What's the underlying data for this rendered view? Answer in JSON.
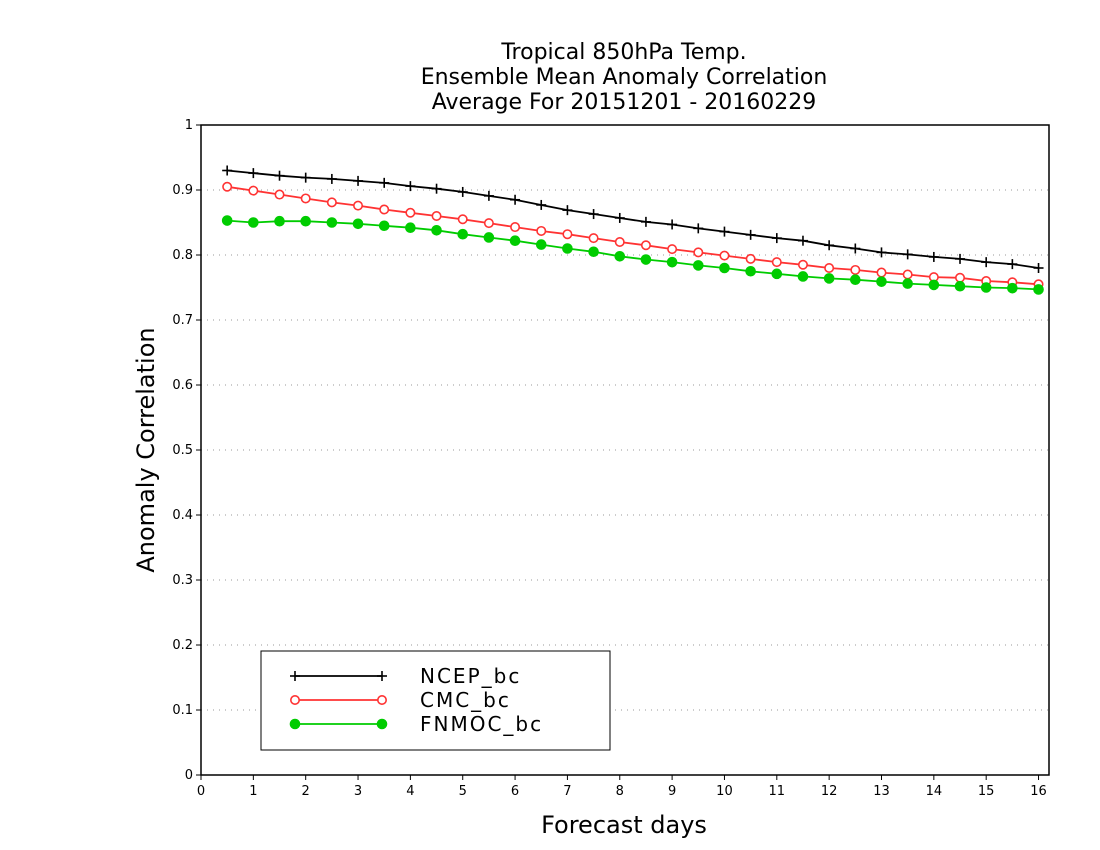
{
  "chart_data": {
    "type": "line",
    "title": [
      "Tropical 850hPa Temp.",
      "Ensemble Mean Anomaly Correlation",
      "Average For 20151201 - 20160229"
    ],
    "xlabel": "Forecast days",
    "ylabel": "Anomaly Correlation",
    "xlim": [
      0,
      16.2
    ],
    "ylim": [
      0,
      1
    ],
    "xticks": [
      "0",
      "1",
      "2",
      "3",
      "4",
      "5",
      "6",
      "7",
      "8",
      "9",
      "10",
      "11",
      "12",
      "13",
      "14",
      "15",
      "16"
    ],
    "yticks": [
      "0",
      "0.1",
      "0.2",
      "0.3",
      "0.4",
      "0.5",
      "0.6",
      "0.7",
      "0.8",
      "0.9",
      "1"
    ],
    "grid": "horizontal dotted",
    "legend_position": "bottom-left",
    "x": [
      0.5,
      1,
      1.5,
      2,
      2.5,
      3,
      3.5,
      4,
      4.5,
      5,
      5.5,
      6,
      6.5,
      7,
      7.5,
      8,
      8.5,
      9,
      9.5,
      10,
      10.5,
      11,
      11.5,
      12,
      12.5,
      13,
      13.5,
      14,
      14.5,
      15,
      15.5,
      16
    ],
    "series": [
      {
        "name": "NCEP_bc",
        "color": "#000000",
        "marker": "plus",
        "values": [
          0.93,
          0.926,
          0.922,
          0.919,
          0.917,
          0.914,
          0.911,
          0.906,
          0.902,
          0.897,
          0.891,
          0.885,
          0.877,
          0.869,
          0.863,
          0.857,
          0.851,
          0.847,
          0.841,
          0.836,
          0.831,
          0.826,
          0.822,
          0.815,
          0.81,
          0.804,
          0.801,
          0.797,
          0.794,
          0.789,
          0.786,
          0.78
        ]
      },
      {
        "name": "CMC_bc",
        "color": "#ff3333",
        "marker": "open-circle",
        "values": [
          0.905,
          0.899,
          0.893,
          0.887,
          0.881,
          0.876,
          0.87,
          0.865,
          0.86,
          0.855,
          0.849,
          0.843,
          0.837,
          0.832,
          0.826,
          0.82,
          0.815,
          0.809,
          0.804,
          0.799,
          0.794,
          0.789,
          0.785,
          0.78,
          0.777,
          0.773,
          0.77,
          0.766,
          0.765,
          0.76,
          0.758,
          0.755
        ]
      },
      {
        "name": "FNMOC_bc",
        "color": "#00cc00",
        "marker": "filled-circle",
        "values": [
          0.853,
          0.85,
          0.852,
          0.852,
          0.85,
          0.848,
          0.845,
          0.842,
          0.838,
          0.832,
          0.827,
          0.822,
          0.816,
          0.81,
          0.805,
          0.798,
          0.793,
          0.789,
          0.784,
          0.78,
          0.775,
          0.771,
          0.767,
          0.764,
          0.762,
          0.759,
          0.756,
          0.754,
          0.752,
          0.75,
          0.749,
          0.747
        ]
      }
    ]
  }
}
